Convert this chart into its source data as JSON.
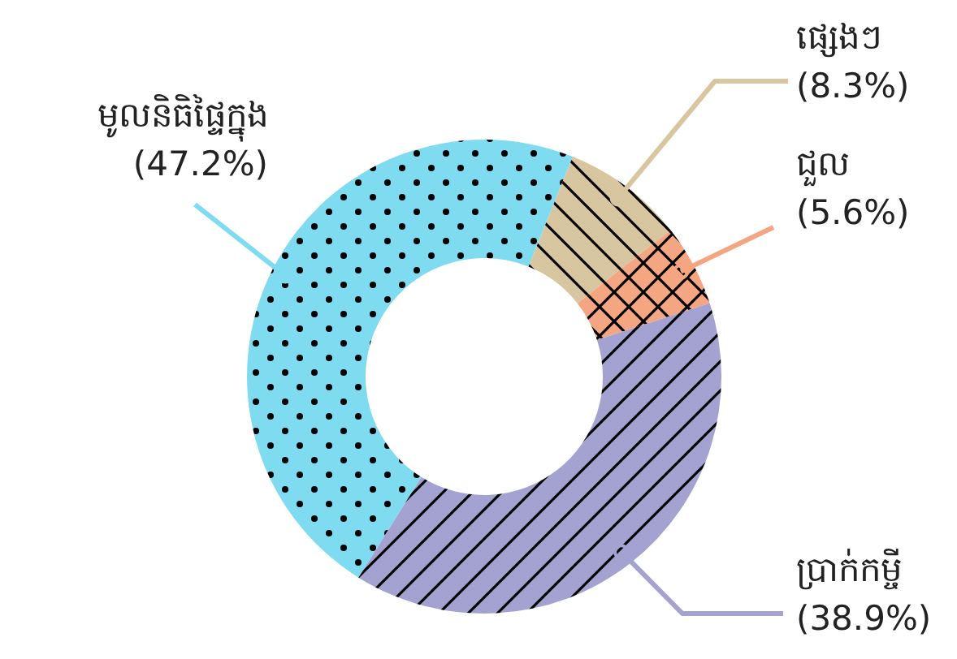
{
  "chart_data": {
    "type": "donut",
    "categories": [
      "មូលនិធិផ្ទៃក្នុង",
      "ផ្សេងៗ",
      "ជួល",
      "ប្រាក់កម្ចី"
    ],
    "values": [
      47.2,
      8.3,
      5.6,
      38.9
    ],
    "value_labels": [
      "(47.2%)",
      "(8.3%)",
      "(5.6%)",
      "(38.9%)"
    ],
    "colors": [
      "#7fdbf0",
      "#d8c6a0",
      "#f4a582",
      "#a3a2d0"
    ]
  }
}
